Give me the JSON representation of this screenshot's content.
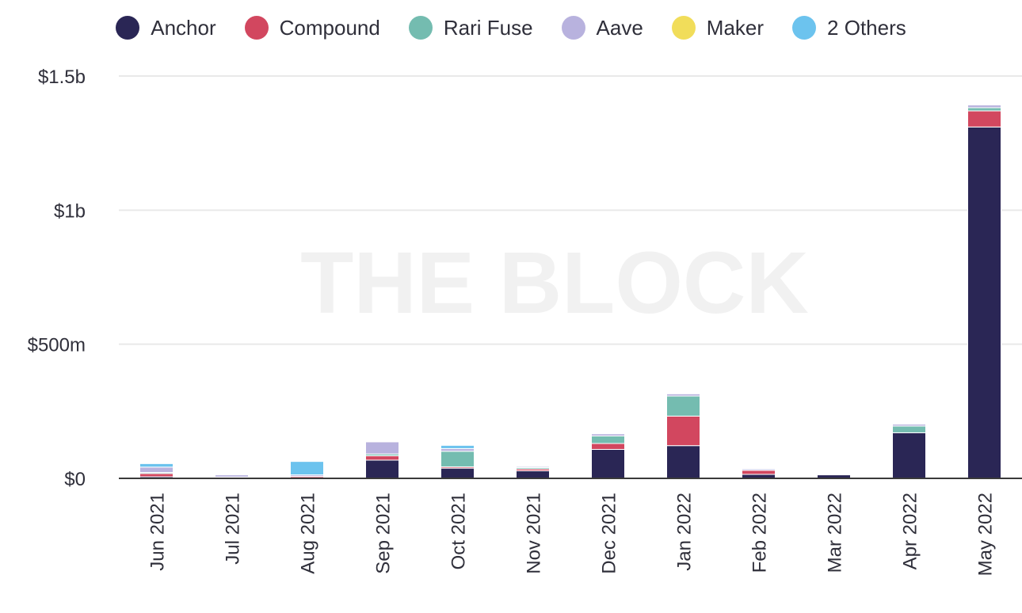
{
  "watermark": "THE BLOCK",
  "chart_data": {
    "type": "bar",
    "stacked": true,
    "legend_position": "top",
    "grid": true,
    "categories": [
      "Jun 2021",
      "Jul 2021",
      "Aug 2021",
      "Sep 2021",
      "Oct 2021",
      "Nov 2021",
      "Dec 2021",
      "Jan 2022",
      "Feb 2022",
      "Mar 2022",
      "Apr 2022",
      "May 2022"
    ],
    "ylim": [
      0,
      1500000000
    ],
    "yticks": [
      {
        "value": 0,
        "label": "$0"
      },
      {
        "value": 500000000,
        "label": "$500m"
      },
      {
        "value": 1000000000,
        "label": "$1b"
      },
      {
        "value": 1500000000,
        "label": "$1.5b"
      }
    ],
    "series": [
      {
        "name": "Anchor",
        "color": "#2a2655",
        "values": [
          6000000,
          3000000,
          2000000,
          68000000,
          38000000,
          28000000,
          108000000,
          122000000,
          15000000,
          13000000,
          170000000,
          1310000000
        ]
      },
      {
        "name": "Compound",
        "color": "#d2475f",
        "values": [
          12000000,
          2000000,
          5000000,
          16000000,
          5000000,
          7000000,
          22000000,
          110000000,
          15000000,
          0,
          0,
          60000000
        ]
      },
      {
        "name": "Rari Fuse",
        "color": "#74bcb0",
        "values": [
          4000000,
          0,
          0,
          7000000,
          58000000,
          5000000,
          28000000,
          75000000,
          0,
          0,
          25000000,
          12000000
        ]
      },
      {
        "name": "Aave",
        "color": "#b8b2de",
        "values": [
          20000000,
          8000000,
          6000000,
          45000000,
          10000000,
          4000000,
          8000000,
          8000000,
          5000000,
          0,
          7000000,
          10000000
        ]
      },
      {
        "name": "Maker",
        "color": "#f1dd5a",
        "values": [
          0,
          0,
          0,
          0,
          0,
          0,
          0,
          0,
          0,
          0,
          0,
          0
        ]
      },
      {
        "name": "2 Others",
        "color": "#6cc3ee",
        "values": [
          13000000,
          0,
          50000000,
          0,
          12000000,
          0,
          0,
          0,
          0,
          0,
          0,
          0
        ]
      }
    ]
  }
}
